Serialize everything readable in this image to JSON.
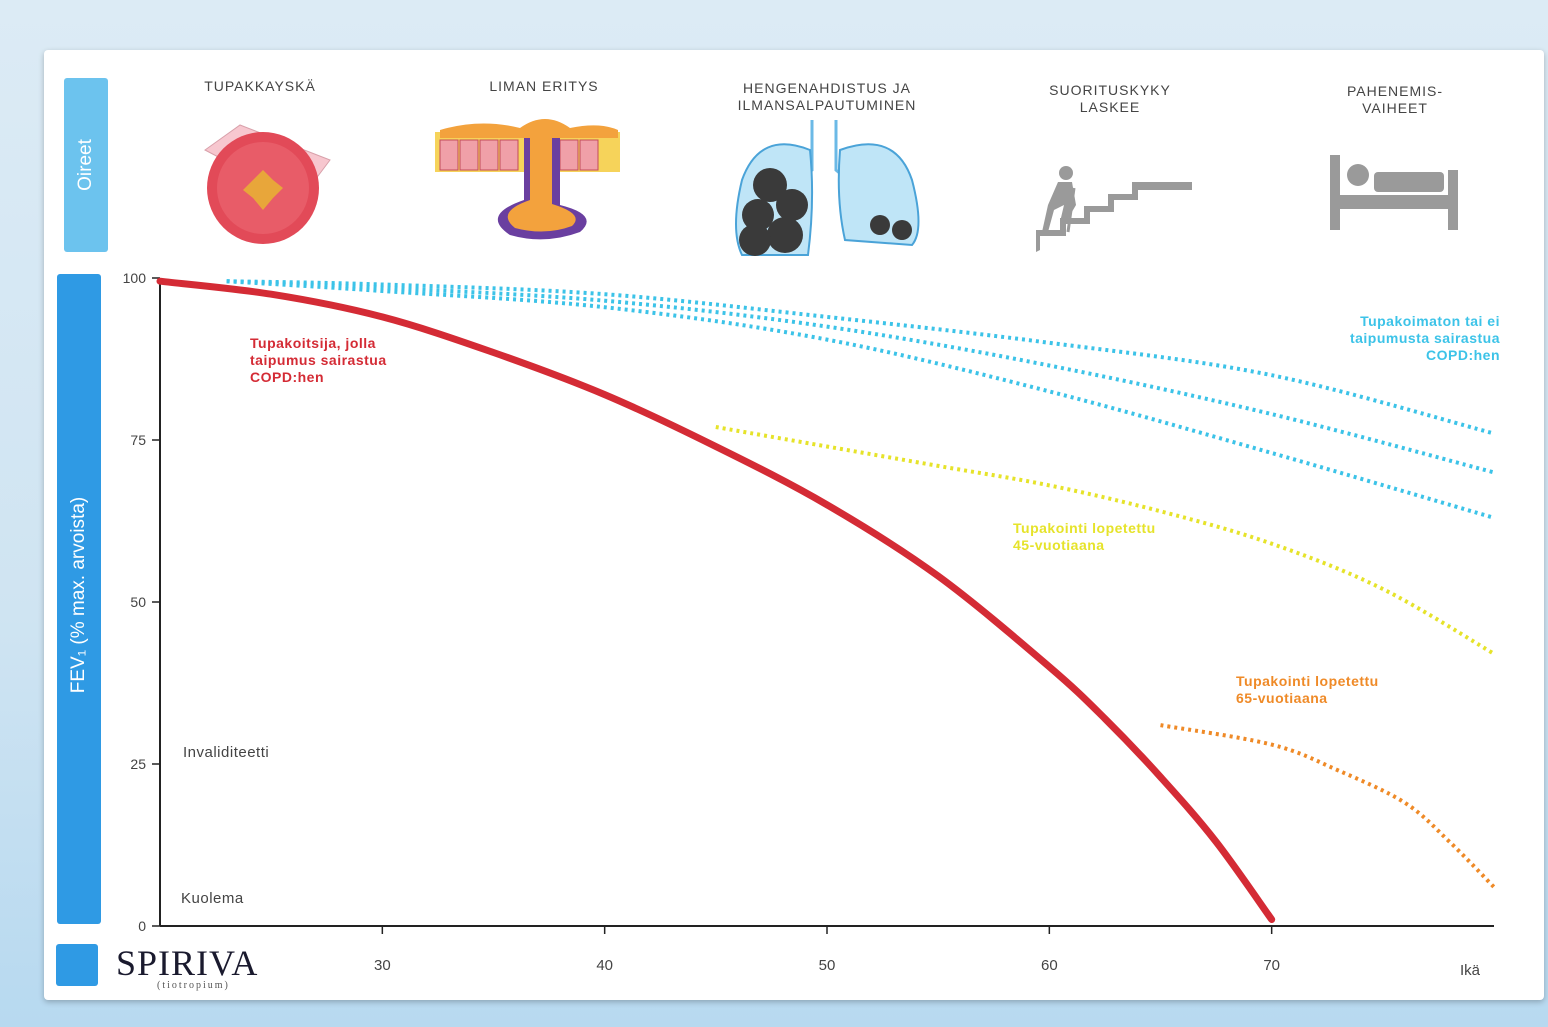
{
  "symptoms_label": "Oireet",
  "symptoms": [
    {
      "label": "TUPAKKAYSKÄ",
      "icon": "airway-cross-section-icon"
    },
    {
      "label": "LIMAN ERITYS",
      "icon": "mucus-gland-icon"
    },
    {
      "label": "HENGENAHDISTUS JA\nILMANSALPAUTUMINEN",
      "icon": "lungs-icon"
    },
    {
      "label": "SUORITUSKYKY\nLASKEE",
      "icon": "person-climbing-stairs-icon"
    },
    {
      "label": "PAHENEMIS-\nVAIHEET",
      "icon": "patient-in-bed-icon"
    }
  ],
  "logo": {
    "name": "SPIRIVA",
    "sub": "(tiotropium)"
  },
  "colors": {
    "smoker": "#d42b35",
    "nonsmoker": "#3cc3e8",
    "quit45": "#e6e32a",
    "quit65": "#ef8a27",
    "accent": "#2f9ae4"
  },
  "chart_data": {
    "type": "line",
    "title": "",
    "xlabel": "Ikä",
    "ylabel": "FEV₁ (% max. arvoista)",
    "xlim": [
      20,
      80
    ],
    "ylim": [
      0,
      100
    ],
    "xticks": [
      30,
      40,
      50,
      60,
      70
    ],
    "xtick_labels": [
      "30",
      "40",
      "50",
      "60",
      "70"
    ],
    "yticks": [
      0,
      25,
      50,
      75,
      100
    ],
    "grid": false,
    "series": [
      {
        "name": "Tupakoitsija, jolla taipumus sairastua COPD:hen",
        "style": "solid",
        "color": "#d42b35",
        "x": [
          20,
          25,
          30,
          35,
          40,
          45,
          50,
          55,
          60,
          62.5,
          65,
          67.5,
          70
        ],
        "y": [
          99.5,
          97.5,
          94,
          88.5,
          82,
          74,
          65,
          54,
          40,
          32,
          23,
          13,
          1
        ]
      },
      {
        "name": "Tupakoimaton tai ei taipumusta sairastua COPD:hen",
        "style": "dotted",
        "color": "#3cc3e8",
        "x": [
          23,
          30,
          40,
          50,
          60,
          70,
          80
        ],
        "y": [
          99.5,
          99,
          97.5,
          94,
          90,
          85,
          76
        ]
      },
      {
        "name": "",
        "style": "dotted",
        "color": "#3cc3e8",
        "x": [
          23,
          30,
          40,
          50,
          60,
          70,
          80
        ],
        "y": [
          99.5,
          98.5,
          96.5,
          92.5,
          86.5,
          79,
          70
        ]
      },
      {
        "name": "",
        "style": "dotted",
        "color": "#3cc3e8",
        "x": [
          23,
          30,
          40,
          50,
          60,
          70,
          80
        ],
        "y": [
          99.5,
          98,
          95.5,
          90.5,
          82.5,
          73,
          63
        ]
      },
      {
        "name": "Tupakointi lopetettu 45-vuotiaana",
        "style": "dotted",
        "color": "#e6e32a",
        "x": [
          45,
          50,
          55,
          60,
          65,
          70,
          75,
          80
        ],
        "y": [
          77,
          74,
          71,
          68,
          64,
          59,
          52,
          42
        ]
      },
      {
        "name": "Tupakointi lopetettu 65-vuotiaana",
        "style": "dotted",
        "color": "#ef8a27",
        "x": [
          65,
          70,
          73,
          76,
          78,
          80
        ],
        "y": [
          31,
          28,
          24,
          19,
          13,
          6
        ]
      }
    ],
    "annotations": [
      {
        "text": "Tupakoitsija, jolla\ntaipumus sairastua\nCOPD:hen",
        "color": "#d42b35",
        "align": "left"
      },
      {
        "text": "Tupakoimaton tai ei\ntaipumusta sairastua\nCOPD:hen",
        "color": "#3cc3e8",
        "align": "right"
      },
      {
        "text": "Tupakointi lopetettu\n45-vuotiaana",
        "color": "#e6e32a",
        "align": "left"
      },
      {
        "text": "Tupakointi lopetettu\n65-vuotiaana",
        "color": "#ef8a27",
        "align": "left"
      },
      {
        "text": "Invaliditeetti",
        "color": "#444444",
        "align": "left"
      },
      {
        "text": "Kuolema",
        "color": "#444444",
        "align": "left"
      }
    ]
  }
}
